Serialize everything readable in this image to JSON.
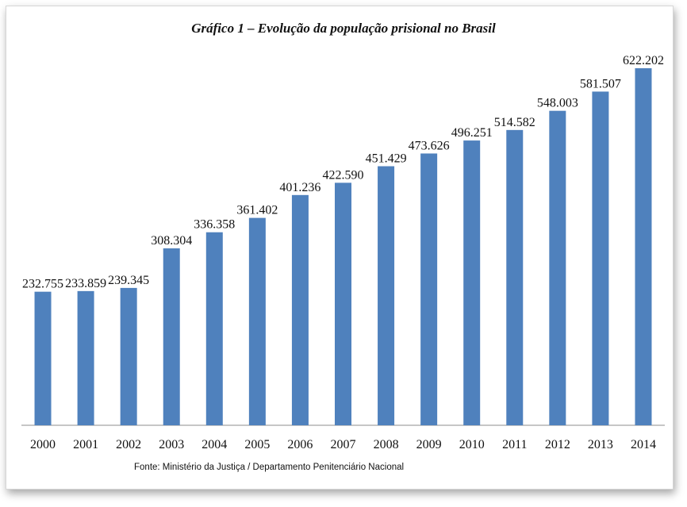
{
  "chart_data": {
    "type": "bar",
    "title": "Gráfico 1 – Evolução da população prisional no Brasil",
    "categories": [
      "2000",
      "2001",
      "2002",
      "2003",
      "2004",
      "2005",
      "2006",
      "2007",
      "2008",
      "2009",
      "2010",
      "2011",
      "2012",
      "2013",
      "2014"
    ],
    "values": [
      232755,
      233859,
      239345,
      308304,
      336358,
      361402,
      401236,
      422590,
      451429,
      473626,
      496251,
      514582,
      548003,
      581507,
      622202
    ],
    "data_labels": [
      "232.755",
      "233.859",
      "239.345",
      "308.304",
      "336.358",
      "361.402",
      "401.236",
      "422.590",
      "451.429",
      "473.626",
      "496.251",
      "514.582",
      "548.003",
      "581.507",
      "622.202"
    ],
    "xlabel": "",
    "ylabel": "",
    "ylim": [
      0,
      622202
    ],
    "grid": false,
    "legend": "none",
    "bar_color": "#4f81bd",
    "source": "Fonte: Ministério da Justiça / Departamento Penitenciário Nacional"
  }
}
